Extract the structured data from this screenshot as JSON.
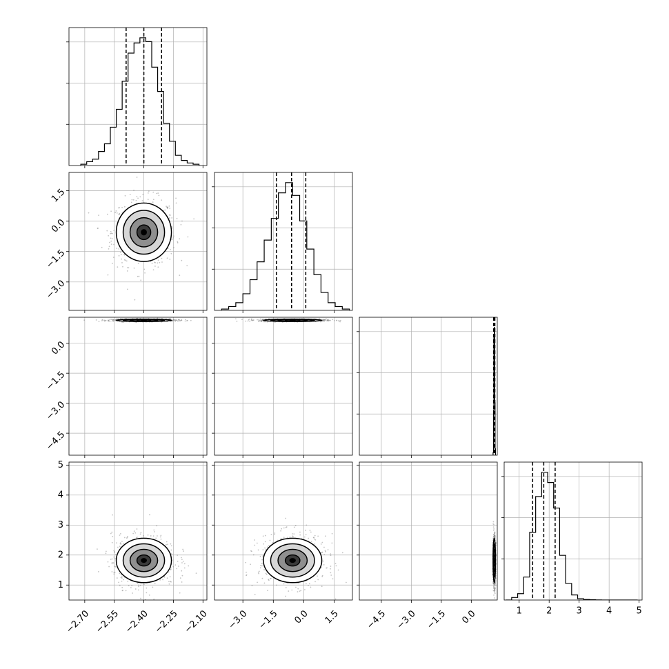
{
  "chart_data": {
    "type": "corner",
    "parameters": [
      {
        "range": [
          -2.78,
          -2.08
        ],
        "ticks": [
          -2.7,
          -2.55,
          -2.4,
          -2.25,
          -2.1
        ],
        "tick_labels": [
          "−2.70",
          "−2.55",
          "−2.40",
          "−2.25",
          "−2.10"
        ],
        "quantiles": [
          -2.49,
          -2.4,
          -2.31
        ],
        "center": -2.4,
        "sd": 0.07
      },
      {
        "range": [
          -4.4,
          2.4
        ],
        "ticks": [
          -3.0,
          -1.5,
          0.0,
          1.5
        ],
        "tick_labels": [
          "−3.0",
          "−1.5",
          "0.0",
          "1.5"
        ],
        "quantiles": [
          -1.35,
          -0.6,
          0.1
        ],
        "center": -0.55,
        "sd": 0.72
      },
      {
        "range": [
          -5.6,
          1.3
        ],
        "ticks": [
          -4.5,
          -3.0,
          -1.5,
          0.0
        ],
        "tick_labels": [
          "−4.5",
          "−3.0",
          "−1.5",
          "0.0"
        ],
        "quantiles": [
          1.12,
          1.15,
          1.18
        ],
        "center": 1.15,
        "sd": 0.03
      },
      {
        "range": [
          0.5,
          5.1
        ],
        "ticks": [
          1,
          2,
          3,
          4,
          5
        ],
        "tick_labels": [
          "1",
          "2",
          "3",
          "4",
          "5"
        ],
        "quantiles": [
          1.45,
          1.82,
          2.2
        ],
        "center": 1.82,
        "sd": 0.37
      }
    ],
    "histograms": [
      {
        "param": 0,
        "bins": [
          -2.72,
          -2.69,
          -2.66,
          -2.63,
          -2.6,
          -2.57,
          -2.54,
          -2.51,
          -2.48,
          -2.45,
          -2.42,
          -2.39,
          -2.36,
          -2.33,
          -2.3,
          -2.27,
          -2.24,
          -2.21,
          -2.18,
          -2.15,
          -2.12
        ],
        "counts": [
          0.01,
          0.03,
          0.05,
          0.11,
          0.17,
          0.3,
          0.44,
          0.66,
          0.88,
          0.96,
          1.0,
          0.97,
          0.77,
          0.58,
          0.33,
          0.19,
          0.08,
          0.04,
          0.02,
          0.01
        ]
      },
      {
        "param": 1,
        "bins": [
          -4.05,
          -3.7,
          -3.35,
          -3.0,
          -2.65,
          -2.3,
          -1.95,
          -1.6,
          -1.25,
          -0.9,
          -0.55,
          -0.2,
          0.15,
          0.5,
          0.85,
          1.2,
          1.55,
          1.9,
          2.25
        ],
        "counts": [
          0.01,
          0.03,
          0.06,
          0.13,
          0.24,
          0.38,
          0.55,
          0.72,
          0.92,
          1.0,
          0.9,
          0.7,
          0.48,
          0.28,
          0.14,
          0.06,
          0.03,
          0.01
        ]
      },
      {
        "param": 2,
        "bins": [
          1.09,
          1.11,
          1.13,
          1.15,
          1.17,
          1.19,
          1.21
        ],
        "counts": [
          0.02,
          0.35,
          0.93,
          1.0,
          0.41,
          0.05
        ]
      },
      {
        "param": 3,
        "bins": [
          0.55,
          0.75,
          0.95,
          1.15,
          1.35,
          1.55,
          1.75,
          1.95,
          2.15,
          2.35,
          2.55,
          2.75,
          2.95,
          3.15,
          3.35,
          3.55,
          3.75,
          3.95,
          4.15,
          4.35,
          4.55,
          4.75,
          4.95
        ],
        "counts": [
          0.0,
          0.02,
          0.05,
          0.18,
          0.53,
          0.81,
          1.0,
          0.92,
          0.72,
          0.35,
          0.13,
          0.04,
          0.01,
          0.004,
          0.002,
          0.001,
          0.0,
          0.0,
          0.0,
          0.0,
          0.0,
          0.0
        ]
      }
    ],
    "pairs": [
      {
        "x": 0,
        "y": 1
      },
      {
        "x": 0,
        "y": 2
      },
      {
        "x": 1,
        "y": 2
      },
      {
        "x": 0,
        "y": 3
      },
      {
        "x": 1,
        "y": 3
      },
      {
        "x": 2,
        "y": 3
      }
    ],
    "show_grid": true,
    "legend": "none"
  }
}
